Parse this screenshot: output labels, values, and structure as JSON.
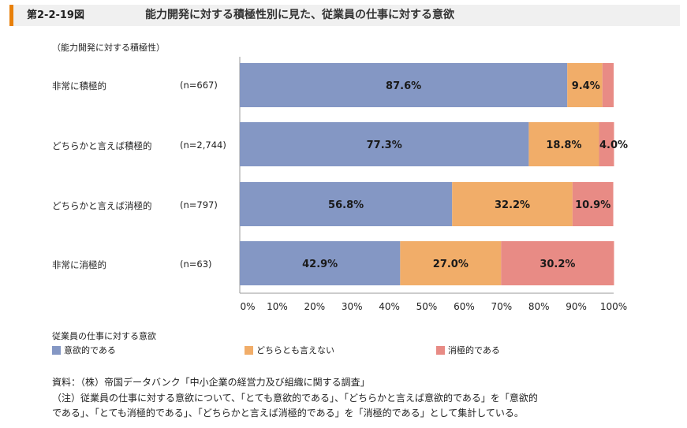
{
  "header": {
    "figure_no": "第2-2-19図",
    "title": "能力開発に対する積極性別に見た、従業員の仕事に対する意欲"
  },
  "group_label": "（能力開発に対する積極性）",
  "rows": [
    {
      "label": "非常に積極的",
      "n": "(n=667)"
    },
    {
      "label": "どちらかと言えば積極的",
      "n": "(n=2,744)"
    },
    {
      "label": "どちらかと言えば消極的",
      "n": "(n=797)"
    },
    {
      "label": "非常に消極的",
      "n": "(n=63)"
    }
  ],
  "legend_title": "従業員の仕事に対する意欲",
  "colors": {
    "motivated": "#8497c4",
    "neutral": "#f1ad69",
    "unmotivated": "#e88b85"
  },
  "chart_data": {
    "type": "bar",
    "orientation": "horizontal",
    "stacked": true,
    "categories": [
      "非常に積極的",
      "どちらかと言えば積極的",
      "どちらかと言えば消極的",
      "非常に消極的"
    ],
    "series": [
      {
        "name": "意欲的である",
        "values": [
          87.6,
          77.3,
          56.8,
          42.9
        ],
        "labels": [
          "87.6%",
          "77.3%",
          "56.8%",
          "42.9%"
        ]
      },
      {
        "name": "どちらとも言えない",
        "values": [
          9.4,
          18.8,
          32.2,
          27.0
        ],
        "labels": [
          "9.4%",
          "18.8%",
          "32.2%",
          "27.0%"
        ]
      },
      {
        "name": "消極的である",
        "values": [
          3.0,
          4.0,
          10.9,
          30.2
        ],
        "labels": [
          "",
          "4.0%",
          "10.9%",
          "30.2%"
        ]
      }
    ],
    "xlim": [
      0,
      100
    ],
    "ticks": [
      "0%",
      "10%",
      "20%",
      "30%",
      "40%",
      "50%",
      "60%",
      "70%",
      "80%",
      "90%",
      "100%"
    ],
    "legend": "bottom"
  },
  "notes": {
    "source": "資料：（株）帝国データバンク「中小企業の経営力及び組織に関する調査」",
    "note1": "（注）従業員の仕事に対する意欲について、「とても意欲的である」、「どちらかと言えば意欲的である」を「意欲的",
    "note2": "である」、「とても消極的である」、「どちらかと言えば消極的である」を「消極的である」として集計している。"
  }
}
